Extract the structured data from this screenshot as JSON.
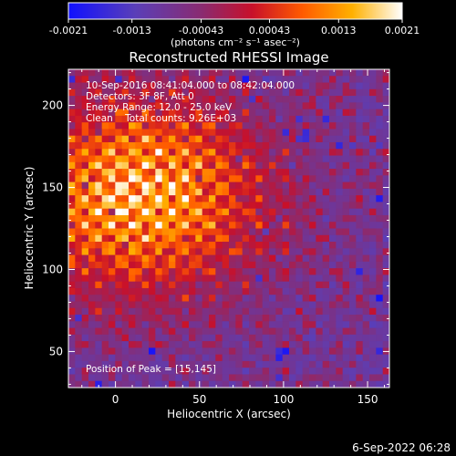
{
  "colorbar": {
    "tick_labels": [
      "-0.0021",
      "-0.0013",
      "-0.00043",
      "0.00043",
      "0.0013",
      "0.0021"
    ],
    "units_label": "(photons cm⁻² s⁻¹ asec⁻²)",
    "range": [
      -0.0021,
      0.0021
    ],
    "colormap": [
      "#1010ff",
      "#5a3fb8",
      "#8a2b70",
      "#c8102a",
      "#ff5a00",
      "#ffb000",
      "#ffffff"
    ]
  },
  "chart_data": {
    "type": "heatmap",
    "title": "Reconstructed RHESSI Image",
    "xlabel": "Heliocentric X (arcsec)",
    "ylabel": "Heliocentric Y (arcsec)",
    "xlim": [
      -28,
      163
    ],
    "ylim": [
      28,
      222
    ],
    "x_ticks": [
      0,
      50,
      100,
      150
    ],
    "y_ticks": [
      50,
      100,
      150,
      200
    ],
    "peak": [
      15,
      145
    ],
    "annotations": [
      "10-Sep-2016 08:41:04.000 to 08:42:04.000",
      "Detectors: 3F 8F, Att 0",
      "Energy Range: 12.0 - 25.0 keV",
      "Clean    Total counts: 9.26E+03"
    ],
    "peak_label": "Position of Peak = [15,145]"
  },
  "footer": {
    "date": "6-Sep-2022 06:28"
  }
}
